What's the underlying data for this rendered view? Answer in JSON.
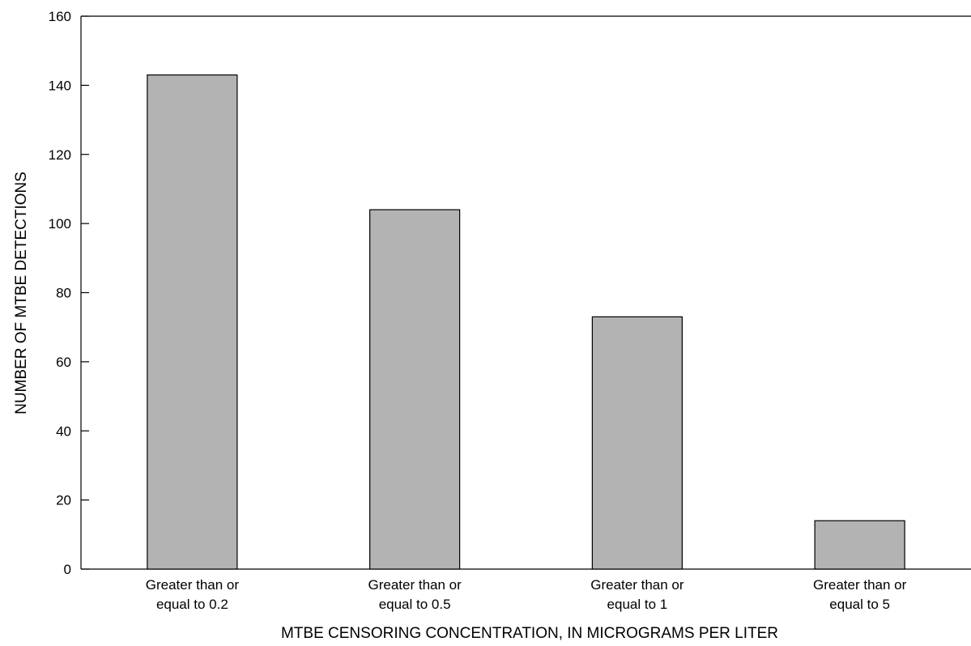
{
  "chart_data": {
    "type": "bar",
    "title": "",
    "xlabel": "MTBE CENSORING CONCENTRATION, IN MICROGRAMS PER LITER",
    "ylabel": "NUMBER OF MTBE DETECTIONS",
    "categories": [
      [
        "Greater than or",
        "equal to 0.2"
      ],
      [
        "Greater than or",
        "equal to 0.5"
      ],
      [
        "Greater than or",
        "equal to 1"
      ],
      [
        "Greater than or",
        "equal to 5"
      ]
    ],
    "values": [
      143,
      104,
      73,
      14
    ],
    "ylim": [
      0,
      160
    ],
    "yticks": [
      0,
      20,
      40,
      60,
      80,
      100,
      120,
      140,
      160
    ],
    "grid": false,
    "legend": "none",
    "colors": {
      "bar_fill": "#b3b3b3",
      "bar_stroke": "#000000",
      "axis": "#000000"
    }
  }
}
